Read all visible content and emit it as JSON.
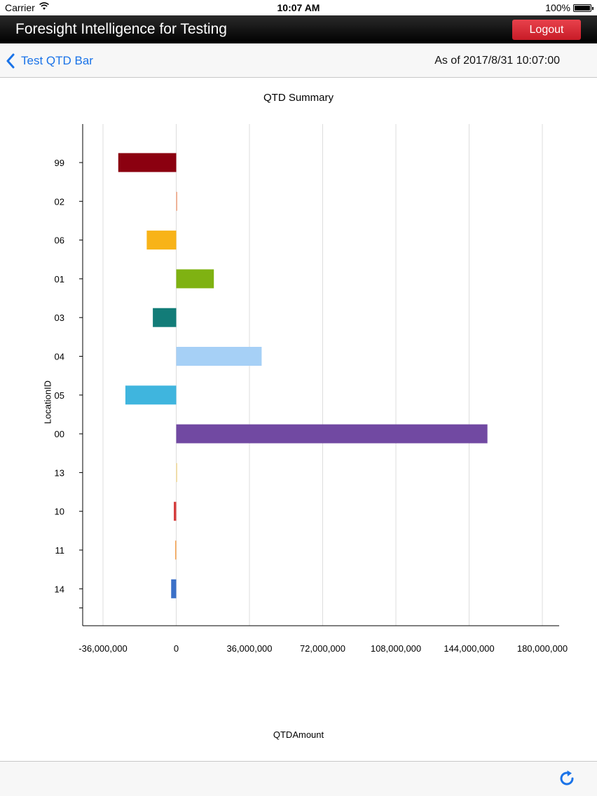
{
  "status": {
    "carrier": "Carrier",
    "time": "10:07 AM",
    "battery": "100%"
  },
  "header": {
    "title": "Foresight Intelligence for Testing",
    "logout_label": "Logout"
  },
  "nav": {
    "back_label": "Test QTD Bar",
    "as_of": "As of 2017/8/31 10:07:00"
  },
  "colors": {
    "accent": "#1a73e8",
    "logout": "#d7222f"
  },
  "chart_data": {
    "type": "bar",
    "orientation": "horizontal",
    "title": "QTD Summary",
    "xlabel": "QTDAmount",
    "ylabel": "LocationID",
    "xlim": [
      -36000000,
      180000000
    ],
    "xticks": [
      "-36,000,000",
      "0",
      "36,000,000",
      "72,000,000",
      "108,000,000",
      "144,000,000",
      "180,000,000"
    ],
    "xtick_values": [
      -36000000,
      0,
      36000000,
      72000000,
      108000000,
      144000000,
      180000000
    ],
    "grid": "vertical",
    "categories": [
      "99",
      "02",
      "06",
      "01",
      "03",
      "04",
      "05",
      "00",
      "13",
      "10",
      "11",
      "14"
    ],
    "values": [
      -28500000,
      300000,
      -14500000,
      18500000,
      -11500000,
      42000000,
      -25000000,
      153000000,
      200000,
      -1200000,
      -500000,
      -2500000
    ],
    "colors": [
      "#8b0010",
      "#f4a582",
      "#f8b318",
      "#7fb212",
      "#127c78",
      "#a6d0f6",
      "#3fb5de",
      "#7149a2",
      "#f5dd9a",
      "#d53e3e",
      "#f6a04c",
      "#3a70c8"
    ]
  }
}
